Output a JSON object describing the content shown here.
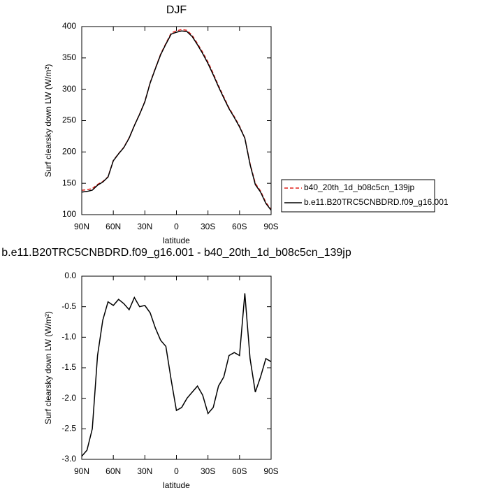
{
  "chart_data": [
    {
      "type": "line",
      "title": "DJF",
      "xlabel": "latitude",
      "ylabel": "Surf clearsky down LW (W/m²)",
      "x": [
        90,
        85,
        80,
        75,
        70,
        65,
        60,
        55,
        50,
        45,
        40,
        35,
        30,
        25,
        20,
        15,
        10,
        5,
        0,
        -5,
        -10,
        -15,
        -20,
        -25,
        -30,
        -35,
        -40,
        -45,
        -50,
        -55,
        -60,
        -65,
        -70,
        -75,
        -80,
        -85,
        -90
      ],
      "series": [
        {
          "name": "b40_20th_1d_b08c5cn_139jp",
          "color": "#e0201b",
          "dash": true,
          "values": [
            138.95,
            139.85,
            141.5,
            148.3,
            152.72,
            160.42,
            186.48,
            197.38,
            207.45,
            222.55,
            242.35,
            260.5,
            280.48,
            310.6,
            333.85,
            356.05,
            373.15,
            389.7,
            393.2,
            395.15,
            394,
            385.9,
            372.8,
            358.95,
            343.25,
            325.15,
            305.8,
            287.65,
            270.3,
            256.25,
            241.3,
            222.28,
            181.35,
            149.9,
            137.65,
            119.35,
            108.4
          ]
        },
        {
          "name": "b.e11.B20TRC5CNBDRD.f09_g16.001",
          "color": "#000000",
          "dash": false,
          "values": [
            136,
            137,
            139,
            147,
            152,
            160,
            186,
            197,
            207,
            222,
            242,
            260,
            280,
            310,
            333,
            355,
            372,
            388,
            391,
            393,
            392,
            384,
            371,
            357,
            341,
            323,
            304,
            286,
            269,
            255,
            240,
            222,
            180,
            148,
            136,
            118,
            107
          ]
        }
      ],
      "xlim": [
        90,
        -90
      ],
      "xticks": [
        {
          "value": 90,
          "label": "90N"
        },
        {
          "value": 60,
          "label": "60N"
        },
        {
          "value": 30,
          "label": "30N"
        },
        0,
        {
          "value": -30,
          "label": "30S"
        },
        {
          "value": -60,
          "label": "60S"
        },
        {
          "value": -90,
          "label": "90S"
        }
      ],
      "ylim": [
        100,
        400
      ],
      "yticks": [
        100,
        150,
        200,
        250,
        300,
        350,
        400
      ]
    },
    {
      "type": "line",
      "title": "b.e11.B20TRC5CNBDRD.f09_g16.001 - b40_20th_1d_b08c5cn_139jp",
      "xlabel": "latitude",
      "ylabel": "Surf clearsky down LW (W/m²)",
      "x": [
        90,
        85,
        80,
        75,
        70,
        65,
        60,
        55,
        50,
        45,
        40,
        35,
        30,
        25,
        20,
        15,
        10,
        5,
        0,
        -5,
        -10,
        -15,
        -20,
        -25,
        -30,
        -35,
        -40,
        -45,
        -50,
        -55,
        -60,
        -65,
        -70,
        -75,
        -80,
        -85,
        -90
      ],
      "color": "#000000",
      "values": [
        -2.95,
        -2.85,
        -2.5,
        -1.3,
        -0.72,
        -0.42,
        -0.48,
        -0.38,
        -0.45,
        -0.55,
        -0.35,
        -0.5,
        -0.48,
        -0.6,
        -0.85,
        -1.05,
        -1.15,
        -1.7,
        -2.2,
        -2.15,
        -2.0,
        -1.9,
        -1.8,
        -1.95,
        -2.25,
        -2.15,
        -1.8,
        -1.65,
        -1.3,
        -1.25,
        -1.3,
        -0.28,
        -1.35,
        -1.9,
        -1.65,
        -1.35,
        -1.4
      ],
      "xlim": [
        90,
        -90
      ],
      "xticks": [
        {
          "value": 90,
          "label": "90N"
        },
        {
          "value": 60,
          "label": "60N"
        },
        {
          "value": 30,
          "label": "30N"
        },
        0,
        {
          "value": -30,
          "label": "30S"
        },
        {
          "value": -60,
          "label": "60S"
        },
        {
          "value": -90,
          "label": "90S"
        }
      ],
      "ylim": [
        -3,
        0
      ],
      "yticks": [
        {
          "value": -3,
          "label": "-3.0"
        },
        -2.5,
        {
          "value": -2,
          "label": "-2.0"
        },
        -1.5,
        {
          "value": -1,
          "label": "-1.0"
        },
        -0.5,
        {
          "value": 0,
          "label": "0.0"
        }
      ]
    }
  ]
}
